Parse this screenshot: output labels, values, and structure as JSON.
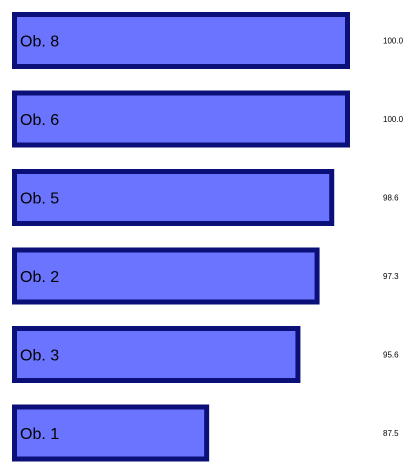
{
  "chart_data": {
    "type": "bar",
    "orientation": "horizontal",
    "categories": [
      "Ob. 8",
      "Ob. 6",
      "Ob. 5",
      "Ob. 2",
      "Ob. 3",
      "Ob. 1"
    ],
    "values": [
      100.0,
      100.0,
      98.6,
      97.3,
      95.6,
      87.5
    ],
    "value_labels": [
      "100.0",
      "100.0",
      "98.6",
      "97.3",
      "95.6",
      "87.5"
    ],
    "xlim": [
      70,
      100
    ],
    "grid": false,
    "legend": "none",
    "colors": {
      "bar_fill": "#6b74ff",
      "bar_border": "#0b0f78"
    }
  }
}
